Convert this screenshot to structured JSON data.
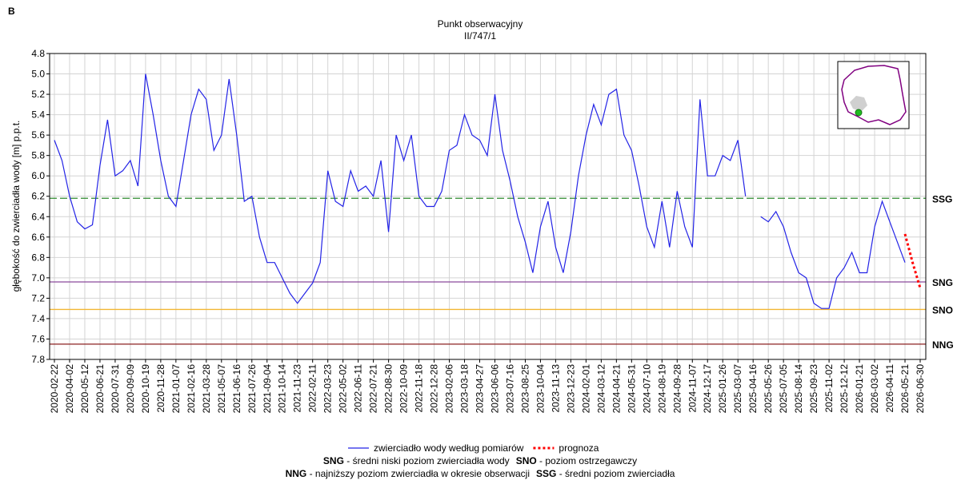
{
  "chart_data": {
    "type": "line",
    "panel_label": "B",
    "title": "Punkt obserwacyjny",
    "subtitle": "II/747/1",
    "y_label": "głębokość do zwierciadła wody [m] p.p.t.",
    "y_inverted": true,
    "grid": true,
    "ylim": [
      7.8,
      4.8
    ],
    "yticks": [
      4.8,
      {
        "value": 5,
        "label": "5.0"
      },
      5.2,
      5.4,
      5.6,
      5.8,
      {
        "value": 6,
        "label": "6.0"
      },
      6.2,
      6.4,
      6.6,
      6.8,
      {
        "value": 7,
        "label": "7.0"
      },
      7.2,
      7.4,
      7.6,
      7.8
    ],
    "categories": [
      "2020-02-22",
      null,
      "2020-04-02",
      null,
      "2020-05-12",
      null,
      "2020-06-21",
      null,
      "2020-07-31",
      null,
      "2020-09-09",
      null,
      "2020-10-19",
      null,
      "2020-11-28",
      null,
      "2021-01-07",
      null,
      "2021-02-16",
      null,
      "2021-03-28",
      null,
      "2021-05-07",
      null,
      "2021-06-16",
      null,
      "2021-07-26",
      null,
      "2021-09-04",
      null,
      "2021-10-14",
      null,
      "2021-11-23",
      null,
      "2022-02-11",
      null,
      "2022-03-23",
      null,
      "2022-05-02",
      null,
      "2022-06-11",
      null,
      "2022-07-21",
      null,
      "2022-08-30",
      null,
      "2022-10-09",
      null,
      "2022-11-18",
      null,
      "2022-12-28",
      null,
      "2023-02-06",
      null,
      "2023-03-18",
      null,
      "2023-04-27",
      null,
      "2023-06-06",
      null,
      "2023-07-16",
      null,
      "2023-08-25",
      null,
      "2023-10-04",
      null,
      "2023-11-13",
      null,
      "2023-12-23",
      null,
      "2024-02-01",
      null,
      "2024-03-12",
      null,
      "2024-04-21",
      null,
      "2024-05-31",
      null,
      "2024-07-10",
      null,
      "2024-08-19",
      null,
      "2024-09-28",
      null,
      "2024-11-07",
      null,
      "2024-12-17",
      null,
      "2025-01-26",
      null,
      "2025-03-07",
      null,
      "2025-04-16",
      null,
      "2025-05-26",
      null,
      "2025-07-05",
      null,
      "2025-08-14",
      null,
      "2025-09-23",
      null,
      "2025-11-02",
      null,
      "2025-12-12",
      null,
      "2026-01-21",
      null,
      "2026-03-02",
      null,
      "2026-04-11",
      null,
      "2026-05-21",
      null,
      "2026-06-30"
    ],
    "series": [
      {
        "name": "zwierciadło wody według pomiarów",
        "color": "#2323e6",
        "style": "solid",
        "values": [
          5.65,
          5.85,
          6.2,
          6.45,
          6.52,
          6.48,
          5.9,
          5.45,
          6.0,
          5.95,
          5.85,
          6.1,
          5.0,
          5.4,
          5.85,
          6.2,
          6.3,
          5.85,
          5.4,
          5.15,
          5.25,
          5.75,
          5.6,
          5.05,
          5.6,
          6.25,
          6.2,
          6.6,
          6.85,
          6.85,
          7.0,
          7.15,
          7.25,
          7.15,
          7.05,
          6.85,
          5.95,
          6.25,
          6.3,
          5.95,
          6.15,
          6.1,
          6.2,
          5.85,
          6.55,
          5.6,
          5.85,
          5.6,
          6.2,
          6.3,
          6.3,
          6.15,
          5.75,
          5.7,
          5.4,
          5.6,
          5.65,
          5.8,
          5.2,
          5.75,
          6.05,
          6.4,
          6.65,
          6.95,
          6.5,
          6.25,
          6.7,
          6.95,
          6.55,
          6.0,
          5.6,
          5.3,
          5.5,
          5.2,
          5.15,
          5.6,
          5.75,
          6.1,
          6.5,
          6.7,
          6.25,
          6.7,
          6.15,
          6.5,
          6.7,
          5.25,
          6.0,
          6.0,
          5.8,
          5.85,
          5.65,
          6.2,
          null,
          6.4,
          6.45,
          6.35,
          6.5,
          6.75,
          6.95,
          7.0,
          7.25,
          7.3,
          7.3,
          7.0,
          6.9,
          6.75,
          6.95,
          6.95,
          6.5,
          6.25,
          6.45,
          6.65,
          6.85,
          null,
          null
        ]
      },
      {
        "name": "prognoza",
        "color": "#ff0000",
        "style": "dotted",
        "values": [
          null,
          null,
          null,
          null,
          null,
          null,
          null,
          null,
          null,
          null,
          null,
          null,
          null,
          null,
          null,
          null,
          null,
          null,
          null,
          null,
          null,
          null,
          null,
          null,
          null,
          null,
          null,
          null,
          null,
          null,
          null,
          null,
          null,
          null,
          null,
          null,
          null,
          null,
          null,
          null,
          null,
          null,
          null,
          null,
          null,
          null,
          null,
          null,
          null,
          null,
          null,
          null,
          null,
          null,
          null,
          null,
          null,
          null,
          null,
          null,
          null,
          null,
          null,
          null,
          null,
          null,
          null,
          null,
          null,
          null,
          null,
          null,
          null,
          null,
          null,
          null,
          null,
          null,
          null,
          null,
          null,
          null,
          null,
          null,
          null,
          null,
          null,
          null,
          null,
          null,
          null,
          null,
          null,
          null,
          null,
          null,
          null,
          null,
          null,
          null,
          null,
          null,
          null,
          null,
          null,
          null,
          null,
          null,
          null,
          null,
          null,
          null,
          6.57,
          6.85,
          7.1
        ]
      }
    ],
    "reference_lines": [
      {
        "label": "SSG",
        "value": 6.22,
        "color": "#2e8b2e",
        "dashed": true
      },
      {
        "label": "SNG",
        "value": 7.04,
        "color": "#8b4a9c",
        "dashed": false
      },
      {
        "label": "SNO",
        "value": 7.31,
        "color": "#f2b632",
        "dashed": false
      },
      {
        "label": "NNG",
        "value": 7.65,
        "color": "#8b2020",
        "dashed": false
      }
    ],
    "notes": [
      [
        {
          "abbr": "SNG",
          "text": " - średni niski poziom zwierciadła wody"
        },
        {
          "abbr": "SNO",
          "text": " - poziom ostrzegawczy"
        }
      ],
      [
        {
          "abbr": "NNG",
          "text": " - najniższy poziom zwierciadła w okresie obserwacji"
        },
        {
          "abbr": "SSG",
          "text": " - średni poziom zwierciadła"
        }
      ]
    ]
  }
}
